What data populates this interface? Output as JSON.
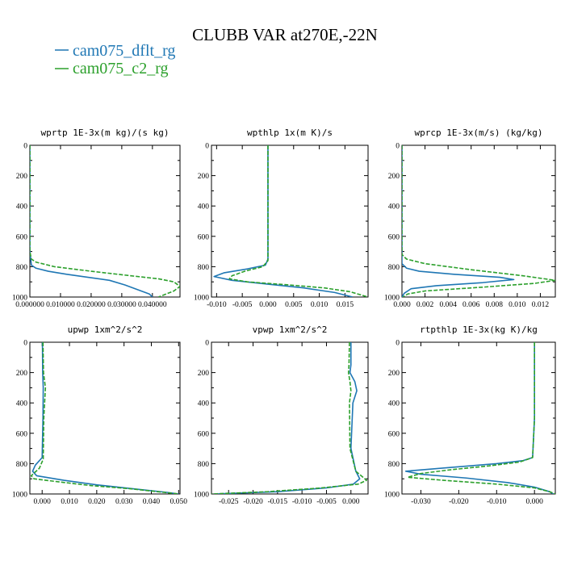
{
  "figure": {
    "title": "CLUBB VAR at270E,-22N",
    "legend": [
      {
        "label": "cam075_dflt_rg",
        "color": "#1f77b4",
        "dash": "solid"
      },
      {
        "label": "cam075_c2_rg",
        "color": "#2ca02c",
        "dash": "dashed"
      }
    ]
  },
  "chart_data": [
    {
      "type": "line",
      "title": "wprtp  1E-3x(m kg)/(s kg)",
      "xlim": [
        0.0,
        0.049
      ],
      "ylim": [
        1000,
        0
      ],
      "xticks": [
        0.0,
        0.01,
        0.02,
        0.03,
        0.04
      ],
      "xtick_labels": [
        "0.000000",
        "0.010000",
        "0.020000",
        "0.030000",
        "0.040000"
      ],
      "yticks": [
        0,
        200,
        400,
        600,
        800,
        1000
      ],
      "series": [
        {
          "name": "cam075_dflt_rg",
          "color": "#1f77b4",
          "dash": "solid",
          "x": [
            0.0,
            0.0,
            0.0,
            0.0005,
            0.002,
            0.006,
            0.012,
            0.019,
            0.026,
            0.031,
            0.035,
            0.039,
            0.04
          ],
          "y": [
            0,
            400,
            700,
            790,
            810,
            830,
            850,
            870,
            890,
            920,
            950,
            980,
            1000
          ]
        },
        {
          "name": "cam075_c2_rg",
          "color": "#2ca02c",
          "dash": "dashed",
          "x": [
            0.0,
            0.0,
            0.0,
            0.0005,
            0.002,
            0.008,
            0.02,
            0.033,
            0.042,
            0.047,
            0.049,
            0.047,
            0.042
          ],
          "y": [
            0,
            400,
            700,
            750,
            770,
            800,
            830,
            860,
            880,
            900,
            930,
            960,
            1000
          ]
        }
      ]
    },
    {
      "type": "line",
      "title": "wpthlp  1x(m K)/s",
      "xlim": [
        -0.011,
        0.0195
      ],
      "ylim": [
        1000,
        0
      ],
      "xticks": [
        -0.01,
        -0.005,
        0.0,
        0.005,
        0.01,
        0.015
      ],
      "xtick_labels": [
        "-0.010",
        "-0.005",
        "0.000",
        "0.005",
        "0.010",
        "0.015"
      ],
      "yticks": [
        0,
        200,
        400,
        600,
        800,
        1000
      ],
      "series": [
        {
          "name": "cam075_dflt_rg",
          "color": "#1f77b4",
          "dash": "solid",
          "x": [
            0.0,
            0.0,
            0.0,
            -0.0005,
            -0.004,
            -0.0085,
            -0.0105,
            -0.007,
            0.0,
            0.007,
            0.013,
            0.0165
          ],
          "y": [
            0,
            400,
            750,
            790,
            815,
            840,
            865,
            890,
            915,
            940,
            970,
            1000
          ]
        },
        {
          "name": "cam075_c2_rg",
          "color": "#2ca02c",
          "dash": "dashed",
          "x": [
            0.0,
            0.0,
            0.0,
            -0.001,
            -0.0045,
            -0.007,
            -0.0075,
            -0.004,
            0.004,
            0.011,
            0.016,
            0.0195
          ],
          "y": [
            0,
            400,
            760,
            800,
            830,
            860,
            880,
            900,
            920,
            940,
            965,
            1000
          ]
        }
      ]
    },
    {
      "type": "line",
      "title": "wprcp  1E-3x(m/s) (kg/kg)",
      "xlim": [
        0.0,
        0.0133
      ],
      "ylim": [
        1000,
        0
      ],
      "xticks": [
        0.0,
        0.002,
        0.004,
        0.006,
        0.008,
        0.01,
        0.012
      ],
      "xtick_labels": [
        "0.000",
        "0.002",
        "0.004",
        "0.006",
        "0.008",
        "0.010",
        "0.012"
      ],
      "yticks": [
        0,
        200,
        400,
        600,
        800,
        1000
      ],
      "series": [
        {
          "name": "cam075_dflt_rg",
          "color": "#1f77b4",
          "dash": "solid",
          "x": [
            0.0,
            0.0,
            0.0,
            0.0004,
            0.0015,
            0.0045,
            0.0085,
            0.0097,
            0.007,
            0.003,
            0.0008,
            0.0002,
            0.0
          ],
          "y": [
            0,
            500,
            780,
            810,
            830,
            850,
            870,
            885,
            905,
            925,
            945,
            975,
            1000
          ]
        },
        {
          "name": "cam075_c2_rg",
          "color": "#2ca02c",
          "dash": "dashed",
          "x": [
            0.0,
            0.0,
            0.0,
            0.0004,
            0.002,
            0.006,
            0.0105,
            0.0133,
            0.0115,
            0.007,
            0.002,
            0.0005,
            0.0001
          ],
          "y": [
            0,
            500,
            720,
            750,
            780,
            820,
            860,
            890,
            910,
            935,
            960,
            980,
            1000
          ]
        }
      ]
    },
    {
      "type": "line",
      "title": "upwp  1xm^2/s^2",
      "xlim": [
        -0.0045,
        0.0505
      ],
      "ylim": [
        1000,
        0
      ],
      "xticks": [
        0.0,
        0.01,
        0.02,
        0.03,
        0.04,
        0.05
      ],
      "xtick_labels": [
        "0.000",
        "0.010",
        "0.020",
        "0.030",
        "0.040",
        "0.050"
      ],
      "yticks": [
        0,
        200,
        400,
        600,
        800,
        1000
      ],
      "series": [
        {
          "name": "cam075_dflt_rg",
          "color": "#1f77b4",
          "dash": "solid",
          "x": [
            0.0001,
            0.0002,
            0.0004,
            0.0003,
            0.0,
            -0.0025,
            -0.0035,
            -0.002,
            0.008,
            0.02,
            0.033,
            0.046,
            0.05
          ],
          "y": [
            0,
            200,
            300,
            500,
            760,
            810,
            850,
            880,
            910,
            940,
            965,
            990,
            1000
          ]
        },
        {
          "name": "cam075_c2_rg",
          "color": "#2ca02c",
          "dash": "dashed",
          "x": [
            0.0003,
            0.0005,
            0.0012,
            0.0006,
            0.0004,
            -0.001,
            -0.004,
            -0.003,
            0.006,
            0.018,
            0.032,
            0.045,
            0.05
          ],
          "y": [
            0,
            200,
            300,
            500,
            770,
            830,
            880,
            900,
            920,
            945,
            965,
            990,
            1000
          ]
        }
      ]
    },
    {
      "type": "line",
      "title": "vpwp  1xm^2/s^2",
      "xlim": [
        -0.0285,
        0.0035
      ],
      "ylim": [
        1000,
        0
      ],
      "xticks": [
        -0.025,
        -0.02,
        -0.015,
        -0.01,
        -0.005,
        0.0
      ],
      "xtick_labels": [
        "-0.025",
        "-0.020",
        "-0.015",
        "-0.010",
        "-0.005",
        "0.000"
      ],
      "yticks": [
        0,
        200,
        400,
        600,
        800,
        1000
      ],
      "series": [
        {
          "name": "cam075_dflt_rg",
          "color": "#1f77b4",
          "dash": "solid",
          "x": [
            0.0,
            0.0,
            -0.0002,
            0.0008,
            0.0012,
            0.0004,
            0.0,
            0.001,
            0.0018,
            0.0005,
            -0.005,
            -0.015,
            -0.028
          ],
          "y": [
            0,
            150,
            200,
            260,
            320,
            400,
            700,
            850,
            900,
            935,
            960,
            985,
            1000
          ]
        },
        {
          "name": "cam075_c2_rg",
          "color": "#2ca02c",
          "dash": "dashed",
          "x": [
            -0.0003,
            -0.0004,
            -0.0005,
            -0.0002,
            0.0,
            -0.0003,
            -0.0002,
            0.001,
            0.0032,
            0.0015,
            -0.006,
            -0.017,
            -0.0285
          ],
          "y": [
            0,
            150,
            200,
            260,
            320,
            400,
            700,
            850,
            910,
            935,
            960,
            985,
            1000
          ]
        }
      ]
    },
    {
      "type": "line",
      "title": "rtpthlp  1E-3x(kg K)/kg",
      "xlim": [
        -0.035,
        0.0055
      ],
      "ylim": [
        1000,
        0
      ],
      "xticks": [
        -0.03,
        -0.02,
        -0.01,
        0.0
      ],
      "xtick_labels": [
        "-0.030",
        "-0.020",
        "-0.010",
        "0.000"
      ],
      "yticks": [
        0,
        200,
        400,
        600,
        800,
        1000
      ],
      "series": [
        {
          "name": "cam075_dflt_rg",
          "color": "#1f77b4",
          "dash": "solid",
          "x": [
            0.0,
            0.0,
            -0.0005,
            -0.003,
            -0.01,
            -0.022,
            -0.034,
            -0.03,
            -0.018,
            -0.007,
            0.0,
            0.004,
            0.005
          ],
          "y": [
            0,
            500,
            760,
            780,
            800,
            825,
            850,
            870,
            895,
            925,
            955,
            985,
            1000
          ]
        },
        {
          "name": "cam075_c2_rg",
          "color": "#2ca02c",
          "dash": "dashed",
          "x": [
            0.0,
            0.0,
            -0.0005,
            -0.004,
            -0.012,
            -0.022,
            -0.03,
            -0.0335,
            -0.024,
            -0.01,
            0.0,
            0.004,
            0.0055
          ],
          "y": [
            0,
            500,
            760,
            790,
            815,
            840,
            865,
            890,
            910,
            935,
            960,
            985,
            1000
          ]
        }
      ]
    }
  ]
}
